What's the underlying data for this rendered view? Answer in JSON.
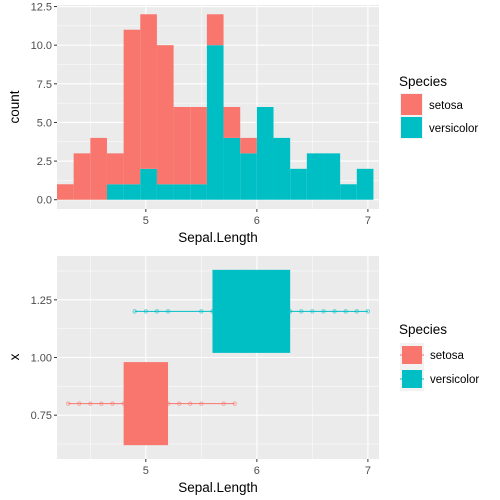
{
  "colors": {
    "setosa": "#F8766D",
    "versicolor": "#00BFC4",
    "panel": "#EBEBEB"
  },
  "chart_data": [
    {
      "type": "bar",
      "subtype": "stacked-histogram",
      "xlabel": "Sepal.Length",
      "ylabel": "count",
      "xlim": [
        4.2,
        7.1
      ],
      "ylim": [
        -0.6,
        12.6
      ],
      "x_ticks": [
        5,
        6,
        7
      ],
      "y_ticks": [
        0.0,
        2.5,
        5.0,
        7.5,
        10.0,
        12.5
      ],
      "y_tick_labels": [
        "0.0",
        "2.5",
        "5.0",
        "7.5",
        "10.0",
        "12.5"
      ],
      "bin_edges": [
        4.2,
        4.35,
        4.5,
        4.65,
        4.8,
        4.95,
        5.1,
        5.25,
        5.4,
        5.55,
        5.7,
        5.85,
        6.0,
        6.15,
        6.3,
        6.45,
        6.6,
        6.75,
        6.9,
        7.05
      ],
      "series": [
        {
          "name": "setosa",
          "values": [
            1,
            3,
            4,
            2,
            10,
            10,
            9,
            5,
            5,
            2,
            2,
            1,
            0,
            0,
            0,
            0,
            0,
            0,
            0
          ]
        },
        {
          "name": "versicolor",
          "values": [
            0,
            0,
            0,
            1,
            1,
            2,
            1,
            1,
            1,
            10,
            4,
            3,
            6,
            4,
            2,
            3,
            3,
            1,
            2
          ]
        }
      ],
      "legend": {
        "title": "Species",
        "entries": [
          "setosa",
          "versicolor"
        ],
        "position": "right"
      },
      "grid": true
    },
    {
      "type": "boxplot",
      "orientation": "horizontal",
      "xlabel": "Sepal.Length",
      "ylabel": "x",
      "xlim": [
        4.2,
        7.1
      ],
      "ylim": [
        0.56,
        1.44
      ],
      "x_ticks": [
        5,
        6,
        7
      ],
      "y_ticks": [
        0.75,
        1.0,
        1.25
      ],
      "y_tick_labels": [
        "0.75",
        "1.00",
        "1.25"
      ],
      "series": [
        {
          "name": "setosa",
          "y": 0.8,
          "half_height": 0.18,
          "min": 4.3,
          "q1": 4.8,
          "median": 5.0,
          "q3": 5.2,
          "max": 5.8,
          "points": [
            4.3,
            4.4,
            4.5,
            4.6,
            4.7,
            4.8,
            4.9,
            5.0,
            5.1,
            5.2,
            5.3,
            5.4,
            5.5,
            5.7,
            5.8
          ]
        },
        {
          "name": "versicolor",
          "y": 1.2,
          "half_height": 0.18,
          "min": 4.9,
          "q1": 5.6,
          "median": 5.9,
          "q3": 6.3,
          "max": 7.0,
          "points": [
            4.9,
            5.0,
            5.1,
            5.2,
            5.5,
            5.6,
            5.7,
            5.8,
            5.9,
            6.0,
            6.1,
            6.2,
            6.3,
            6.4,
            6.5,
            6.6,
            6.7,
            6.8,
            6.9,
            7.0
          ]
        }
      ],
      "legend": {
        "title": "Species",
        "entries": [
          "setosa",
          "versicolor"
        ],
        "position": "right"
      },
      "grid": true
    }
  ]
}
